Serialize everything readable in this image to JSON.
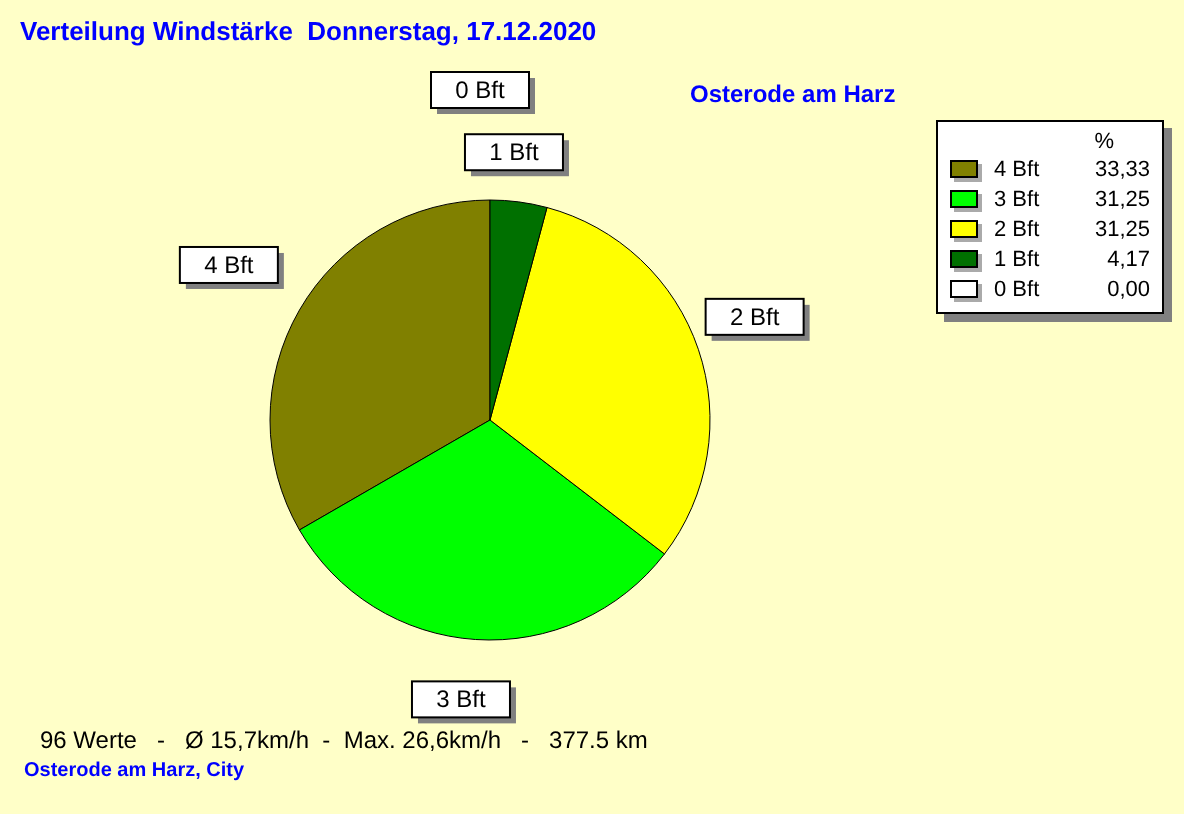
{
  "chart_data": {
    "type": "pie",
    "title": "Verteilung Windstärke  Donnerstag, 17.12.2020",
    "subtitle": "Osterode am Harz",
    "legend_title": "%",
    "categories": [
      "4 Bft",
      "3 Bft",
      "2 Bft",
      "1 Bft",
      "0 Bft"
    ],
    "values": [
      33.33,
      31.25,
      31.25,
      4.17,
      0
    ],
    "value_labels": [
      "33,33",
      "31,25",
      "31,25",
      "4,17",
      "0,00"
    ],
    "colors": [
      "#808000",
      "#00ff00",
      "#ffff00",
      "#007000",
      "#ffffff"
    ],
    "legend": "top right",
    "annotations": [
      "96 Werte   -   Ø 15,7km/h  -  Max. 26,6km/h   -   377.5 km",
      "Osterode am Harz, City"
    ]
  }
}
